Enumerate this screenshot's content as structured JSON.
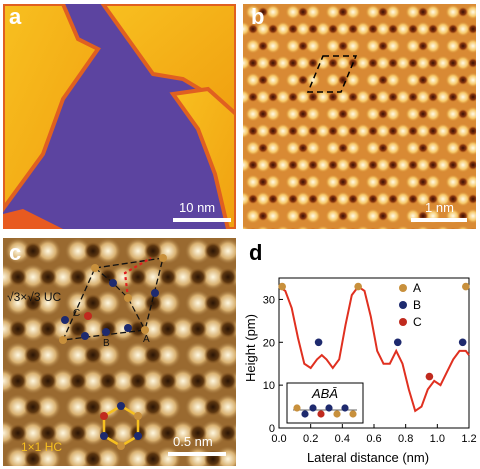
{
  "panels": {
    "a": {
      "label": "a",
      "scale": "10 nm"
    },
    "b": {
      "label": "b",
      "scale": "1 nm"
    },
    "c": {
      "label": "c",
      "scale": "0.5 nm",
      "uc_label": "√3×√3 UC",
      "hc_label": "1×1 HC",
      "site_labels": [
        "C",
        "B",
        "A"
      ]
    },
    "d": {
      "label": "d"
    }
  },
  "colors": {
    "A": "#c8903c",
    "B": "#1e2a6e",
    "C": "#c02a1e",
    "curve": "#e03020"
  },
  "chart_data": {
    "type": "scatter",
    "xlabel": "Lateral distance (nm)",
    "ylabel": "Height (pm)",
    "xlim": [
      0,
      1.2
    ],
    "ylim": [
      0,
      35
    ],
    "xticks": [
      "0.0",
      "0.2",
      "0.4",
      "0.6",
      "0.8",
      "1.0",
      "1.2"
    ],
    "yticks": [
      "0",
      "10",
      "20",
      "30"
    ],
    "legend": [
      "A",
      "B",
      "C"
    ],
    "inset_label": "ABĀ",
    "series": [
      {
        "name": "A",
        "points": [
          [
            0.02,
            33
          ],
          [
            0.5,
            33
          ],
          [
            1.18,
            33
          ]
        ]
      },
      {
        "name": "B",
        "points": [
          [
            0.25,
            20
          ],
          [
            0.75,
            20
          ],
          [
            1.16,
            20
          ]
        ]
      },
      {
        "name": "C",
        "points": [
          [
            0.95,
            12
          ]
        ]
      }
    ],
    "curve": [
      [
        0.0,
        33
      ],
      [
        0.04,
        32
      ],
      [
        0.08,
        28
      ],
      [
        0.12,
        21
      ],
      [
        0.16,
        15
      ],
      [
        0.2,
        14
      ],
      [
        0.24,
        16
      ],
      [
        0.27,
        17
      ],
      [
        0.3,
        16
      ],
      [
        0.34,
        14
      ],
      [
        0.38,
        16
      ],
      [
        0.42,
        24
      ],
      [
        0.46,
        31
      ],
      [
        0.5,
        33
      ],
      [
        0.54,
        32
      ],
      [
        0.58,
        26
      ],
      [
        0.62,
        18
      ],
      [
        0.66,
        15
      ],
      [
        0.7,
        15
      ],
      [
        0.74,
        18
      ],
      [
        0.78,
        15
      ],
      [
        0.82,
        9
      ],
      [
        0.86,
        4
      ],
      [
        0.9,
        5
      ],
      [
        0.94,
        9
      ],
      [
        0.98,
        11
      ],
      [
        1.02,
        10
      ],
      [
        1.06,
        13
      ],
      [
        1.1,
        16
      ],
      [
        1.14,
        18
      ],
      [
        1.18,
        18
      ],
      [
        1.2,
        17
      ]
    ]
  }
}
